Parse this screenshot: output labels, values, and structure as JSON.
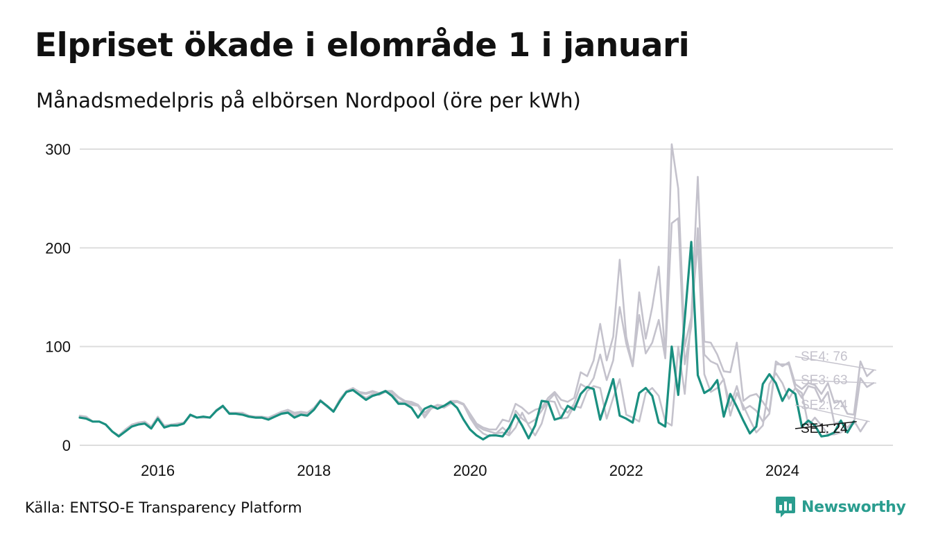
{
  "title": "Elpriset ökade i elområde 1 i januari",
  "subtitle": "Månadsmedelpris på elbörsen Nordpool (öre per kWh)",
  "source": "Källa: ENTSO-E Transparency Platform",
  "brand": {
    "name": "Newsworthy",
    "color": "#2a9d8f",
    "icon": "bar-chart-speech-icon"
  },
  "colors": {
    "highlight": "#1a8f80",
    "background_series": "#c4c2cc",
    "grid": "#dddddd"
  },
  "chart_data": {
    "type": "line",
    "x_start": "2015-01",
    "x_step": "month",
    "xlim": [
      "2015-01",
      "2025-06"
    ],
    "x_ticks": [
      "2016",
      "2018",
      "2020",
      "2022",
      "2024"
    ],
    "x_tick_dates": [
      "2016-01",
      "2018-01",
      "2020-01",
      "2022-01",
      "2024-01"
    ],
    "ylim": [
      0,
      300
    ],
    "y_ticks": [
      0,
      100,
      200,
      300
    ],
    "grid": true,
    "series": [
      {
        "name": "SE4",
        "end_label": "SE4: 76",
        "color": "#c4c2cc",
        "values": [
          30,
          29,
          24,
          24,
          21,
          14,
          10,
          16,
          21,
          23,
          24,
          19,
          29,
          20,
          21,
          22,
          23,
          31,
          28,
          29,
          28,
          36,
          40,
          33,
          33,
          33,
          30,
          29,
          29,
          28,
          31,
          34,
          36,
          33,
          34,
          33,
          38,
          46,
          40,
          35,
          47,
          55,
          58,
          54,
          53,
          55,
          53,
          55,
          55,
          49,
          45,
          44,
          41,
          33,
          38,
          41,
          40,
          45,
          45,
          42,
          32,
          22,
          18,
          16,
          16,
          26,
          24,
          42,
          38,
          32,
          36,
          38,
          48,
          54,
          46,
          44,
          48,
          74,
          70,
          86,
          123,
          86,
          110,
          188,
          110,
          80,
          155,
          108,
          140,
          181,
          90,
          305,
          260,
          100,
          130,
          272,
          105,
          104,
          92,
          75,
          74,
          104,
          45,
          50,
          52,
          44,
          34,
          85,
          80,
          84,
          62,
          57,
          63,
          61,
          52,
          63,
          43,
          45,
          32,
          31,
          85,
          70,
          76
        ]
      },
      {
        "name": "SE3",
        "end_label": "SE3: 63",
        "color": "#c4c2cc",
        "values": [
          29,
          28,
          24,
          24,
          21,
          14,
          10,
          15,
          20,
          22,
          23,
          18,
          28,
          19,
          21,
          21,
          22,
          30,
          28,
          28,
          28,
          35,
          39,
          32,
          32,
          32,
          29,
          28,
          28,
          27,
          30,
          33,
          35,
          32,
          33,
          32,
          37,
          45,
          39,
          34,
          46,
          54,
          57,
          53,
          52,
          54,
          52,
          54,
          54,
          48,
          44,
          43,
          40,
          30,
          37,
          40,
          39,
          44,
          44,
          41,
          30,
          20,
          16,
          14,
          12,
          18,
          12,
          35,
          27,
          22,
          26,
          35,
          45,
          52,
          38,
          33,
          42,
          62,
          58,
          68,
          92,
          66,
          86,
          140,
          103,
          80,
          132,
          93,
          104,
          127,
          88,
          225,
          230,
          82,
          120,
          220,
          92,
          85,
          82,
          66,
          40,
          60,
          36,
          40,
          35,
          24,
          32,
          82,
          82,
          82,
          58,
          48,
          60,
          58,
          44,
          54,
          22,
          24,
          18,
          22,
          68,
          59,
          63
        ]
      },
      {
        "name": "SE2",
        "end_label": "SE2: 24",
        "color": "#c4c2cc",
        "values": [
          29,
          28,
          24,
          24,
          21,
          14,
          10,
          15,
          20,
          22,
          23,
          18,
          28,
          19,
          21,
          21,
          22,
          30,
          28,
          28,
          28,
          35,
          39,
          32,
          32,
          32,
          29,
          28,
          28,
          27,
          30,
          33,
          34,
          30,
          32,
          31,
          36,
          45,
          39,
          34,
          46,
          54,
          57,
          52,
          48,
          52,
          51,
          54,
          52,
          44,
          43,
          41,
          40,
          28,
          37,
          40,
          38,
          42,
          44,
          41,
          28,
          18,
          12,
          9,
          12,
          13,
          10,
          18,
          33,
          20,
          10,
          22,
          45,
          44,
          27,
          28,
          40,
          38,
          55,
          60,
          58,
          27,
          48,
          67,
          31,
          28,
          24,
          53,
          58,
          50,
          24,
          20,
          100,
          52,
          130,
          207,
          72,
          54,
          58,
          67,
          30,
          53,
          40,
          26,
          13,
          20,
          62,
          73,
          63,
          47,
          58,
          53,
          20,
          28,
          20,
          11,
          11,
          13,
          18,
          25,
          14,
          24
        ]
      },
      {
        "name": "SE1",
        "end_label": "SE1: 24",
        "color": "#1a8f80",
        "highlight": true,
        "values": [
          28,
          27,
          24,
          24,
          21,
          14,
          9,
          14,
          19,
          21,
          22,
          17,
          27,
          18,
          20,
          20,
          22,
          31,
          28,
          29,
          28,
          35,
          40,
          32,
          32,
          31,
          29,
          28,
          28,
          26,
          29,
          32,
          33,
          28,
          31,
          30,
          36,
          45,
          40,
          34,
          45,
          54,
          56,
          51,
          46,
          50,
          52,
          55,
          50,
          42,
          42,
          38,
          28,
          37,
          40,
          37,
          40,
          44,
          38,
          26,
          16,
          10,
          6,
          10,
          10,
          9,
          18,
          31,
          20,
          7,
          20,
          45,
          44,
          26,
          28,
          40,
          36,
          52,
          59,
          57,
          26,
          46,
          67,
          30,
          27,
          23,
          53,
          58,
          50,
          23,
          19,
          100,
          51,
          128,
          206,
          71,
          53,
          57,
          66,
          29,
          52,
          39,
          25,
          12,
          19,
          62,
          72,
          63,
          45,
          57,
          52,
          19,
          25,
          20,
          9,
          10,
          13,
          25,
          13,
          24
        ]
      }
    ]
  }
}
